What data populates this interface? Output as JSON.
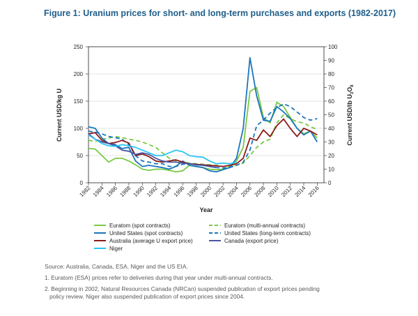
{
  "figure": {
    "title": "Figure 1: Uranium prices for short- and long-term purchases and exports (1982-2017)"
  },
  "notes": {
    "source": "Source: Australia, Canada, ESA, Niger and the US EIA.",
    "note1": "1. Euratom (ESA) prices refer to deliveries during that year under multi-annual contracts.",
    "note2_line1": "2. Beginning in 2002, Natural Resources Canada (NRCan) suspended publication of export prices pending",
    "note2_line2": "policy review. Niger also suspended publication of export prices since 2004."
  },
  "chart_data": {
    "type": "line",
    "xlabel": "Year",
    "ylabel_left": "Current USD/kg U",
    "ylabel_right_main": "Current USD/lb U",
    "ylabel_right_sub1": "3",
    "ylabel_right_after1": "O",
    "ylabel_right_sub2": "8",
    "xlim": [
      1982,
      2017
    ],
    "ylim_left": [
      0,
      250
    ],
    "ylim_right": [
      0,
      100
    ],
    "x_ticks": [
      1982,
      1984,
      1986,
      1988,
      1990,
      1992,
      1994,
      1996,
      1998,
      2000,
      2002,
      2004,
      2006,
      2008,
      2010,
      2012,
      2014,
      2016
    ],
    "y_ticks_left": [
      0,
      50,
      100,
      150,
      200,
      250
    ],
    "y_ticks_right": [
      0,
      10,
      20,
      30,
      40,
      50,
      60,
      70,
      80,
      90,
      100
    ],
    "grid": true,
    "legend_position": "bottom",
    "series": [
      {
        "name": "Euratom (spot contracts)",
        "color": "#7ac943",
        "dash": "solid",
        "x": [
          1982,
          1983,
          1984,
          1985,
          1986,
          1987,
          1988,
          1989,
          1990,
          1991,
          1992,
          1993,
          1994,
          1995,
          1996,
          1997,
          1998,
          1999,
          2000,
          2001,
          2002,
          2003,
          2004,
          2005,
          2006,
          2007,
          2008,
          2009,
          2010,
          2011,
          2012,
          2013,
          2014,
          2015,
          2016
        ],
        "y": [
          63,
          62,
          50,
          38,
          45,
          45,
          40,
          33,
          25,
          23,
          25,
          25,
          23,
          20,
          22,
          32,
          30,
          28,
          25,
          24,
          25,
          28,
          40,
          65,
          168,
          175,
          120,
          110,
          148,
          140,
          120,
          100,
          90,
          95,
          82
        ]
      },
      {
        "name": "Euratom (multi-annual contracts)",
        "color": "#7ac943",
        "dash": "dash",
        "x": [
          1982,
          1983,
          1984,
          1985,
          1986,
          1987,
          1988,
          1989,
          1990,
          1991,
          1992,
          1993,
          1994,
          1995,
          1996,
          1997,
          1998,
          1999,
          2000,
          2001,
          2002,
          2003,
          2004,
          2005,
          2006,
          2007,
          2008,
          2009,
          2010,
          2011,
          2012,
          2013,
          2014,
          2015,
          2016
        ],
        "y": [
          78,
          76,
          80,
          82,
          85,
          83,
          80,
          78,
          75,
          70,
          65,
          55,
          45,
          40,
          38,
          36,
          35,
          34,
          33,
          32,
          30,
          30,
          32,
          36,
          50,
          65,
          75,
          80,
          110,
          125,
          118,
          112,
          110,
          103,
          98
        ]
      },
      {
        "name": "United States (spot contracts)",
        "color": "#1a75bc",
        "dash": "solid",
        "x": [
          1982,
          1983,
          1984,
          1985,
          1986,
          1987,
          1988,
          1989,
          1990,
          1991,
          1992,
          1993,
          1994,
          1995,
          1996,
          1997,
          1998,
          1999,
          2000,
          2001,
          2002,
          2003,
          2004,
          2005,
          2006,
          2007,
          2008,
          2009,
          2010,
          2011,
          2012,
          2013,
          2014,
          2015,
          2016
        ],
        "y": [
          103,
          100,
          82,
          72,
          70,
          63,
          65,
          40,
          30,
          32,
          30,
          28,
          25,
          30,
          40,
          32,
          30,
          28,
          22,
          20,
          24,
          28,
          45,
          100,
          230,
          160,
          115,
          113,
          140,
          130,
          118,
          100,
          88,
          95,
          75
        ]
      },
      {
        "name": "United States (long-term contracts)",
        "color": "#1a75bc",
        "dash": "dash",
        "x": [
          1982,
          1983,
          1984,
          1985,
          1986,
          1987,
          1988,
          1989,
          1990,
          1991,
          1992,
          1993,
          1994,
          1995,
          1996,
          1997,
          1998,
          1999,
          2000,
          2001,
          2002,
          2003,
          2004,
          2005,
          2006,
          2007,
          2008,
          2009,
          2010,
          2011,
          2012,
          2013,
          2014,
          2015,
          2016
        ],
        "y": [
          95,
          93,
          90,
          85,
          83,
          80,
          70,
          50,
          40,
          38,
          35,
          35,
          30,
          30,
          34,
          35,
          33,
          32,
          30,
          28,
          27,
          28,
          32,
          38,
          60,
          105,
          115,
          128,
          138,
          145,
          140,
          130,
          120,
          115,
          118
        ]
      },
      {
        "name": "Australia (average U export price)",
        "color": "#8b1a1a",
        "dash": "solid",
        "x": [
          1982,
          1983,
          1984,
          1985,
          1986,
          1987,
          1988,
          1989,
          1990,
          1991,
          1992,
          1993,
          1994,
          1995,
          1996,
          1997,
          1998,
          1999,
          2000,
          2001,
          2002,
          2003,
          2004,
          2005,
          2006,
          2007,
          2008,
          2009,
          2010,
          2011,
          2012,
          2013,
          2014,
          2015,
          2016
        ],
        "y": [
          90,
          92,
          78,
          72,
          74,
          78,
          73,
          50,
          53,
          48,
          40,
          38,
          40,
          42,
          38,
          35,
          34,
          33,
          32,
          31,
          30,
          32,
          35,
          45,
          82,
          78,
          97,
          85,
          105,
          117,
          100,
          85,
          100,
          95,
          88
        ]
      },
      {
        "name": "Canada (export price)",
        "color": "#4a55a2",
        "dash": "solid",
        "x": [
          1982,
          1983,
          1984,
          1985,
          1986,
          1987,
          1988,
          1989,
          1990,
          1991,
          1992,
          1993,
          1994,
          1995,
          1996,
          1997,
          1998,
          1999,
          2000,
          2001
        ],
        "y": [
          90,
          80,
          75,
          72,
          68,
          60,
          58,
          52,
          55,
          52,
          45,
          40,
          38,
          38,
          36,
          35,
          33,
          32,
          30,
          28
        ]
      },
      {
        "name": "Niger",
        "color": "#29c5f6",
        "dash": "solid",
        "x": [
          1982,
          1983,
          1984,
          1985,
          1986,
          1987,
          1988,
          1989,
          1990,
          1991,
          1992,
          1993,
          1994,
          1995,
          1996,
          1997,
          1998,
          1999,
          2000,
          2001,
          2002,
          2003,
          2004
        ],
        "y": [
          88,
          80,
          72,
          68,
          67,
          70,
          68,
          65,
          60,
          55,
          50,
          50,
          55,
          60,
          57,
          50,
          48,
          47,
          40,
          35,
          36,
          35,
          38
        ]
      }
    ]
  }
}
